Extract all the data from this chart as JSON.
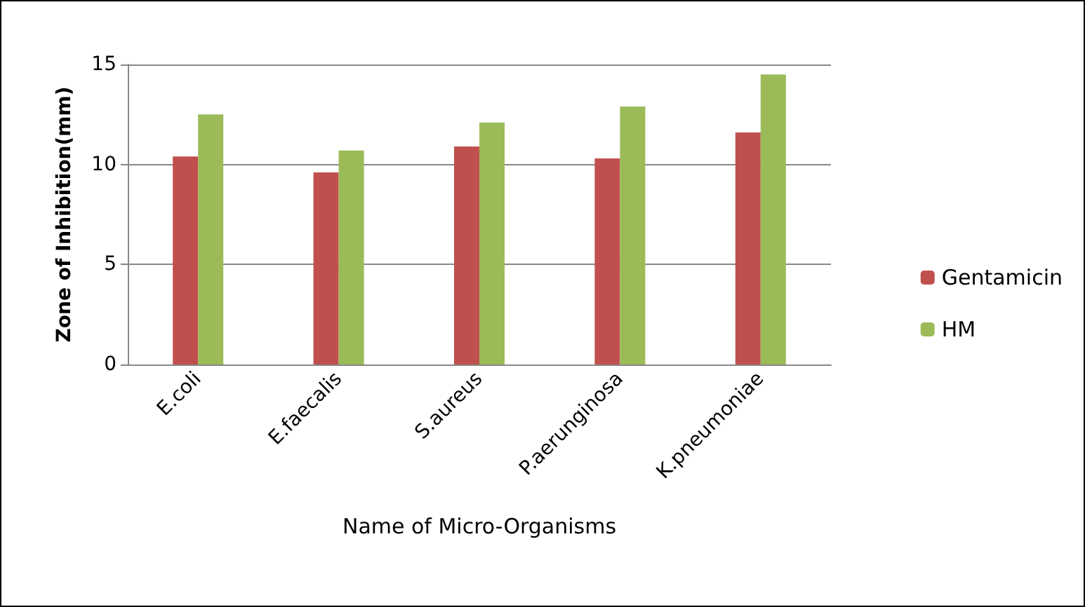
{
  "chart_data": {
    "type": "bar",
    "xlabel": "Name of Micro-Organisms",
    "ylabel": "Zone of Inhibition(mm)",
    "categories": [
      "E.coli",
      "E.faecalis",
      "S.aureus",
      "P.aerunginosa",
      "K.pneumoniae"
    ],
    "series": [
      {
        "name": "Gentamicin",
        "color": "#c0504d",
        "values": [
          10.4,
          9.6,
          10.9,
          10.3,
          11.6
        ]
      },
      {
        "name": "HM",
        "color": "#9bbb59",
        "values": [
          12.5,
          10.7,
          12.1,
          12.9,
          14.5
        ]
      }
    ],
    "ylim": [
      0,
      15
    ],
    "yticks": [
      0,
      5,
      10,
      15
    ],
    "grid": "y",
    "legend": "right"
  }
}
